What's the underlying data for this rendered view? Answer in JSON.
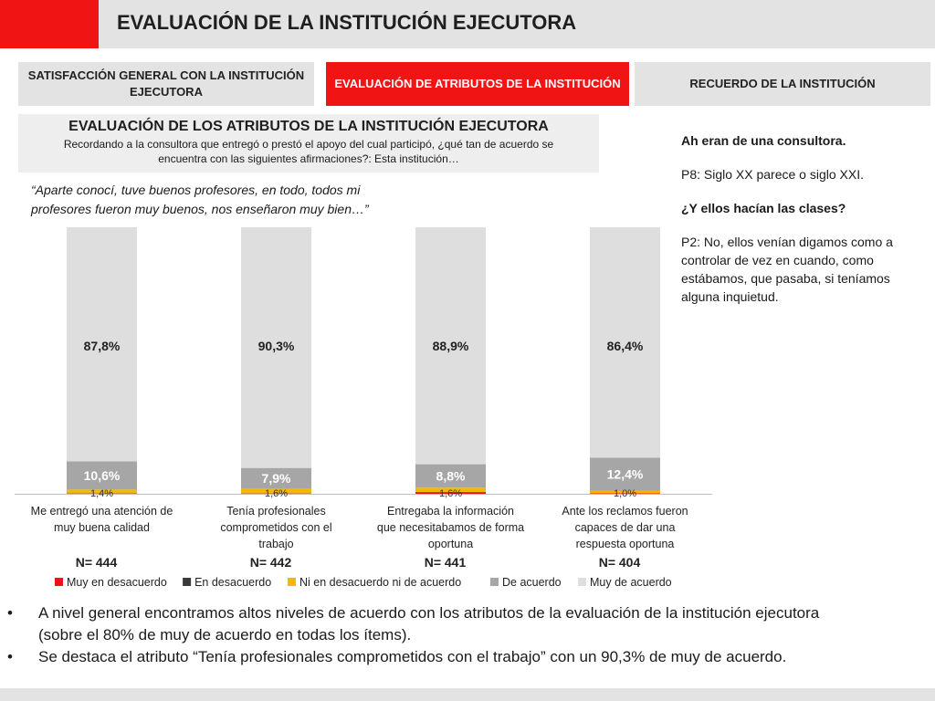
{
  "header": {
    "title": "EVALUACIÓN DE LA INSTITUCIÓN EJECUTORA"
  },
  "tabs": [
    {
      "label": "SATISFACCIÓN GENERAL CON LA INSTITUCIÓN EJECUTORA"
    },
    {
      "label": "EVALUACIÓN DE ATRIBUTOS DE LA INSTITUCIÓN"
    },
    {
      "label": "RECUERDO DE LA INSTITUCIÓN"
    }
  ],
  "question": {
    "title": "EVALUACIÓN DE LOS ATRIBUTOS DE LA INSTITUCIÓN EJECUTORA",
    "text": "Recordando a la consultora que entregó o prestó el apoyo del cual participó, ¿qué tan de acuerdo se encuentra con las siguientes afirmaciones?: Esta institución…"
  },
  "quote": "“Aparte conocí, tuve buenos profesores, en todo, todos mi profesores fueron muy buenos, nos enseñaron muy bien…”",
  "side_notes": [
    {
      "text": "Ah eran de una consultora.",
      "bold": true
    },
    {
      "text": "P8: Siglo XX parece o siglo XXI.",
      "bold": false
    },
    {
      "text": "¿Y ellos hacían las clases?",
      "bold": true
    },
    {
      "text": "P2: No, ellos venían digamos como a controlar de vez en cuando, como estábamos, que pasaba, si teníamos alguna inquietud.",
      "bold": false
    }
  ],
  "colors": {
    "muy_en_desacuerdo": "#e8141c",
    "en_desacuerdo": "#3a3a3a",
    "ni_ni": "#f5b800",
    "de_acuerdo": "#a6a6a6",
    "muy_de_acuerdo": "#dedede",
    "accent_red": "#f01414"
  },
  "chart_data": {
    "type": "bar",
    "stacked": true,
    "percent": true,
    "categories": [
      "Me entregó una atención de muy buena calidad",
      "Tenía profesionales comprometidos con el trabajo",
      "Entregaba la información que necesitabamos de forma oportuna",
      "Ante los reclamos fueron capaces de dar una respuesta oportuna"
    ],
    "n_labels": [
      "N= 444",
      "N= 442",
      "N= 441",
      "N= 404"
    ],
    "series": [
      {
        "name": "Muy en desacuerdo",
        "values": [
          0.1,
          0.1,
          0.6,
          0.2
        ],
        "labels": [
          "",
          "",
          "",
          ""
        ]
      },
      {
        "name": "En desacuerdo",
        "values": [
          0.1,
          0.1,
          0.1,
          0.0
        ],
        "labels": [
          "",
          "",
          "",
          ""
        ]
      },
      {
        "name": "Ni en desacuerdo ni de acuerdo",
        "values": [
          1.4,
          1.6,
          1.6,
          1.0
        ],
        "labels": [
          "1,4%",
          "1,6%",
          "1,6%",
          "1,0%"
        ]
      },
      {
        "name": "De acuerdo",
        "values": [
          10.6,
          7.9,
          8.8,
          12.4
        ],
        "labels": [
          "10,6%",
          "7,9%",
          "8,8%",
          "12,4%"
        ]
      },
      {
        "name": "Muy de acuerdo",
        "values": [
          87.8,
          90.3,
          88.9,
          86.4
        ],
        "labels": [
          "87,8%",
          "90,3%",
          "88,9%",
          "86,4%"
        ]
      }
    ],
    "ylim": [
      0,
      100
    ],
    "legend_position": "bottom"
  },
  "bullets": [
    "A nivel general encontramos altos niveles de acuerdo con los atributos de la evaluación de la institución ejecutora (sobre el 80% de muy de acuerdo en todas los ítems).",
    "Se destaca el atributo “Tenía profesionales comprometidos con el trabajo” con un 90,3% de muy de acuerdo."
  ],
  "bullet_glyph": "•"
}
